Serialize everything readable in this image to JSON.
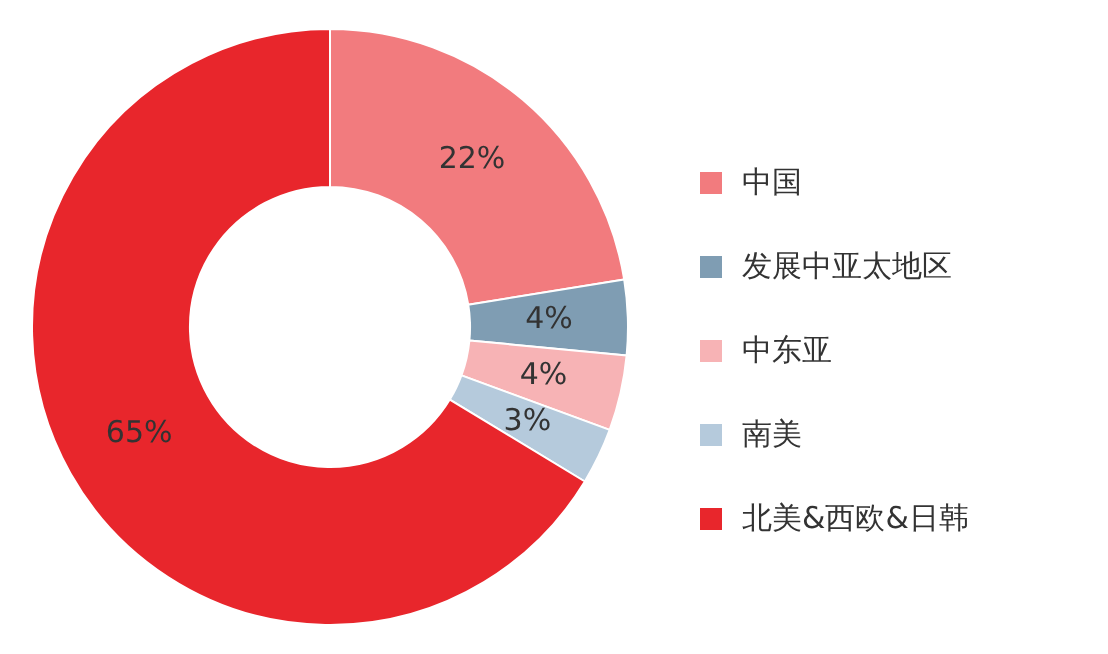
{
  "chart_data": {
    "type": "donut",
    "categories": [
      "中国",
      "发展中亚太地区",
      "中东亚",
      "南美",
      "北美&西欧&日韩"
    ],
    "values": [
      22,
      4,
      4,
      3,
      65
    ],
    "colors": [
      "#f27b7e",
      "#7f9db3",
      "#f7b3b5",
      "#b5cadc",
      "#e8262c"
    ],
    "value_labels": [
      "22%",
      "4%",
      "4%",
      "3%",
      "65%"
    ],
    "legend": "right"
  }
}
